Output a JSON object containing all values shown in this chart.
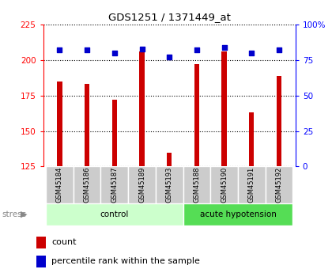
{
  "title": "GDS1251 / 1371449_at",
  "categories": [
    "GSM45184",
    "GSM45186",
    "GSM45187",
    "GSM45189",
    "GSM45193",
    "GSM45188",
    "GSM45190",
    "GSM45191",
    "GSM45192"
  ],
  "bar_values": [
    185,
    183,
    172,
    206,
    135,
    197,
    206,
    163,
    189
  ],
  "dot_values_pct": [
    82,
    82,
    80,
    83,
    77,
    82,
    84,
    80,
    82
  ],
  "ylim": [
    125,
    225
  ],
  "y2lim": [
    0,
    100
  ],
  "yticks": [
    125,
    150,
    175,
    200,
    225
  ],
  "y2ticks": [
    0,
    25,
    50,
    75,
    100
  ],
  "bar_color": "#cc0000",
  "dot_color": "#0000cc",
  "bar_width": 0.18,
  "groups": [
    {
      "label": "control",
      "start": 0,
      "end": 5,
      "color": "#ccffcc"
    },
    {
      "label": "acute hypotension",
      "start": 5,
      "end": 9,
      "color": "#55dd55"
    }
  ],
  "stress_label": "stress",
  "background_color": "#ffffff",
  "tick_label_area_color": "#cccccc"
}
